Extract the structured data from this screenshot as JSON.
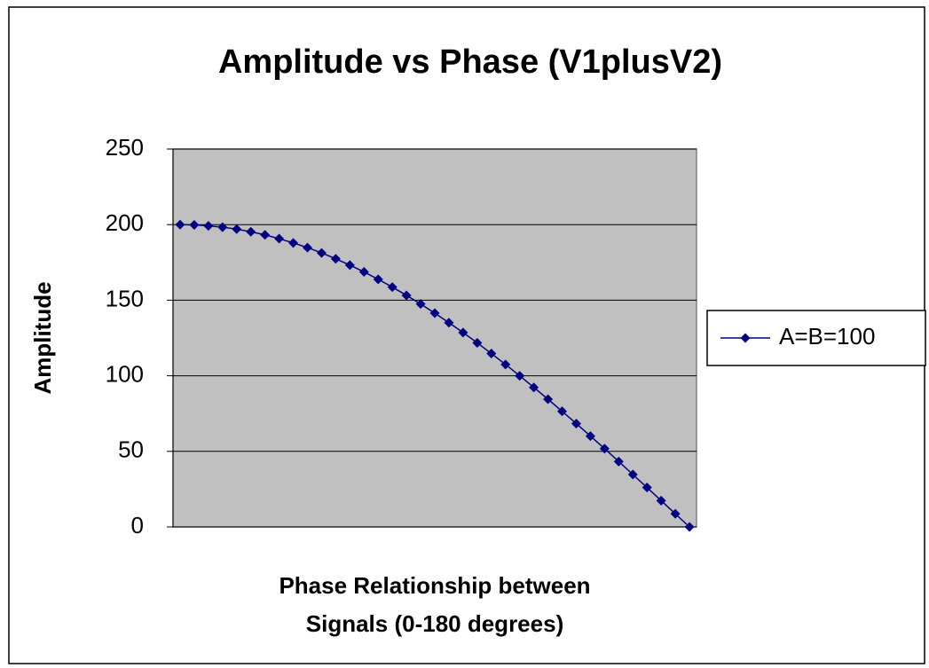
{
  "chart_data": {
    "type": "line",
    "title": "Amplitude vs Phase (V1plusV2)",
    "xlabel": [
      "Phase Relationship  between",
      "Signals (0-180 degrees)"
    ],
    "ylabel": "Amplitude",
    "categories": [
      null,
      null,
      null,
      null,
      null,
      null,
      null,
      null,
      null,
      null,
      null,
      null,
      null,
      null,
      null,
      null,
      null,
      null,
      null,
      null,
      null,
      null,
      null,
      null,
      null,
      null,
      null,
      null,
      null,
      null,
      null,
      null,
      null,
      null,
      null,
      null,
      null
    ],
    "series": [
      {
        "name": "A=B=100",
        "color": "#000080",
        "values": [
          200,
          199.8,
          199.2,
          198.3,
          197.0,
          195.3,
          193.2,
          190.7,
          187.9,
          184.8,
          181.3,
          177.4,
          173.2,
          168.7,
          163.8,
          158.7,
          153.2,
          147.5,
          141.4,
          135.1,
          128.6,
          121.8,
          114.7,
          107.5,
          100,
          92.3,
          84.5,
          76.5,
          68.4,
          60.1,
          51.8,
          43.3,
          34.7,
          26.1,
          17.4,
          8.7,
          0
        ]
      }
    ],
    "ylim": [
      0,
      250
    ],
    "yticks": [
      0,
      50,
      100,
      150,
      200,
      250
    ],
    "grid": true,
    "legend": "right"
  }
}
